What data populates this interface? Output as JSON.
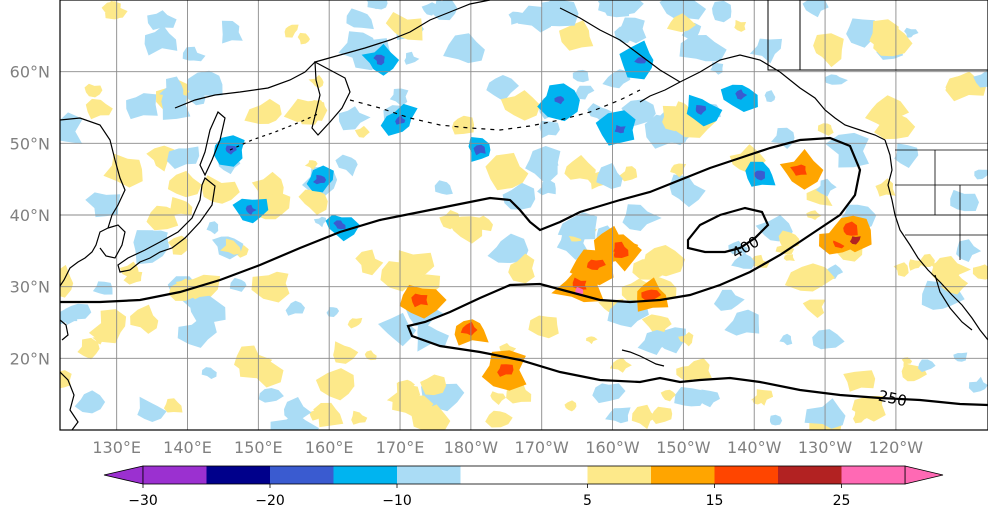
{
  "chart_data": {
    "type": "map",
    "lon_ticks": [
      "130°E",
      "140°E",
      "150°E",
      "160°E",
      "170°E",
      "180°W",
      "170°W",
      "160°W",
      "150°W",
      "140°W",
      "130°W",
      "120°W"
    ],
    "lat_ticks": [
      "60°N",
      "50°N",
      "40°N",
      "30°N",
      "20°N"
    ],
    "lon_range": [
      122,
      253
    ],
    "lat_range": [
      10,
      70
    ],
    "contour_labels": [
      "400",
      "250"
    ],
    "colorbar": {
      "boundaries": [
        -30,
        -25,
        -20,
        -15,
        -10,
        -5,
        5,
        10,
        15,
        20,
        25,
        30
      ],
      "labels": [
        "−30",
        "−20",
        "−10",
        "5",
        "15",
        "25"
      ],
      "colors": [
        "#9b30d0",
        "#00008b",
        "#3a5bd0",
        "#00b4f0",
        "#aadcf5",
        "#ffffff",
        "#fde98a",
        "#ffa500",
        "#ff4500",
        "#b22222",
        "#ff69b4"
      ]
    }
  }
}
